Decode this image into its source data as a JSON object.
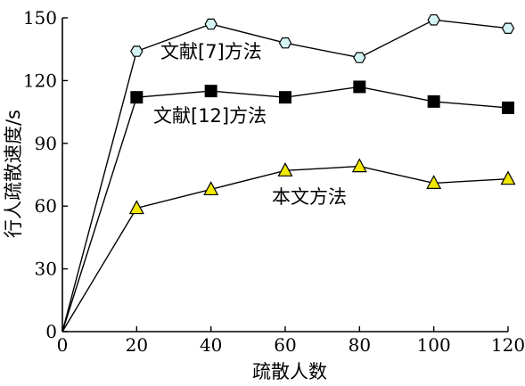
{
  "chart_data": {
    "type": "line",
    "xlabel": "疏散人数",
    "ylabel": "行人疏散速度/s",
    "xlim": [
      0,
      120
    ],
    "ylim": [
      0,
      150
    ],
    "xticks": [
      "0",
      "20",
      "40",
      "60",
      "80",
      "100",
      "120"
    ],
    "yticks": [
      "0",
      "30",
      "60",
      "90",
      "120",
      "150"
    ],
    "grid": false,
    "legend": "none",
    "series": [
      {
        "name": "文献[7]方法",
        "marker": "hexagon",
        "color": "#d4f3f5",
        "x": [
          0,
          20,
          40,
          60,
          80,
          100,
          120
        ],
        "values": [
          0,
          134,
          147,
          138,
          131,
          149,
          145
        ]
      },
      {
        "name": "文献[12]方法",
        "marker": "square",
        "color": "#000000",
        "x": [
          0,
          20,
          40,
          60,
          80,
          100,
          120
        ],
        "values": [
          0,
          112,
          115,
          112,
          117,
          110,
          107
        ]
      },
      {
        "name": "本文方法",
        "marker": "triangle",
        "color": "#f2e900",
        "x": [
          0,
          20,
          40,
          60,
          80,
          100,
          120
        ],
        "values": [
          0,
          59,
          68,
          77,
          79,
          71,
          73
        ]
      }
    ]
  }
}
